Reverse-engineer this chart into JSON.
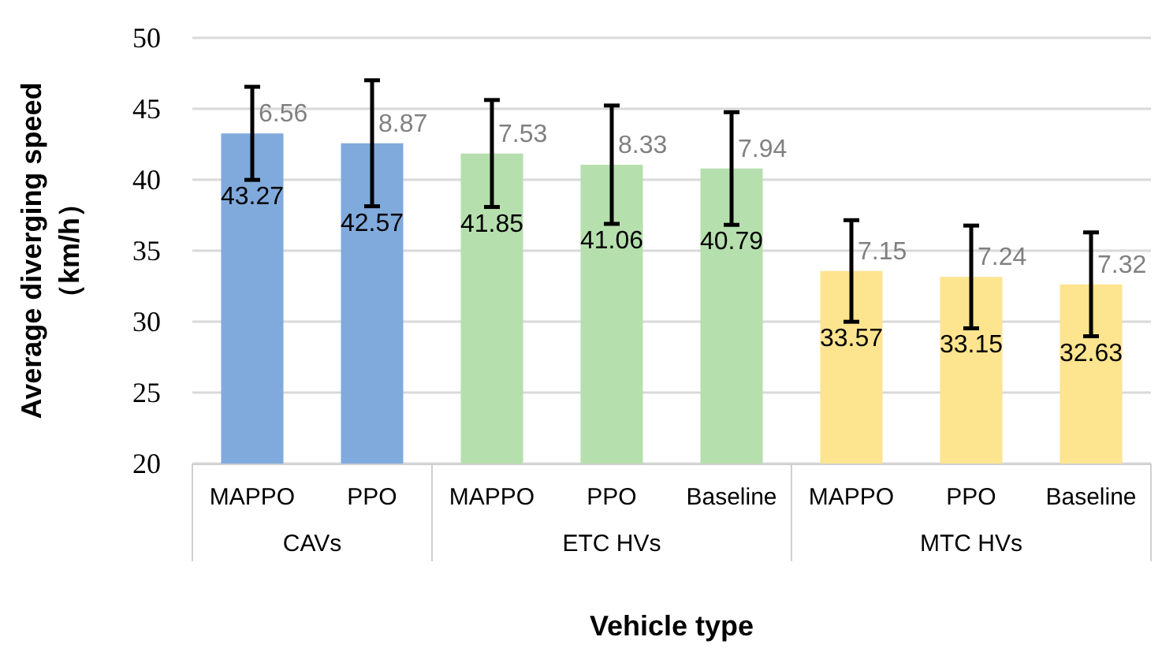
{
  "chart_data": {
    "type": "bar",
    "xlabel": "Vehicle type",
    "ylabel": "Average diverging speed\n（km/h）",
    "categories": [
      "MAPPO",
      "PPO",
      "MAPPO",
      "PPO",
      "Baseline",
      "MAPPO",
      "PPO",
      "Baseline"
    ],
    "values": [
      43.27,
      42.57,
      41.85,
      41.06,
      40.79,
      33.57,
      33.15,
      32.63
    ],
    "errors": [
      3.28,
      4.44,
      3.77,
      4.17,
      3.97,
      3.58,
      3.62,
      3.66
    ],
    "colors": [
      "#80aadc",
      "#80aadc",
      "#b6dfae",
      "#b6dfae",
      "#b6dfae",
      "#fde48f",
      "#fde48f",
      "#fde48f"
    ],
    "data_labels": true,
    "ylim": [
      20,
      50
    ],
    "yticks": [
      20,
      25,
      30,
      35,
      40,
      45,
      50
    ],
    "grid": "y",
    "annotations": [
      "6.56",
      "8.87",
      "7.53",
      "8.33",
      "7.94",
      "7.15",
      "7.24",
      "7.32",
      "CAVs",
      "ETC HVs",
      "MTC HVs"
    ]
  }
}
